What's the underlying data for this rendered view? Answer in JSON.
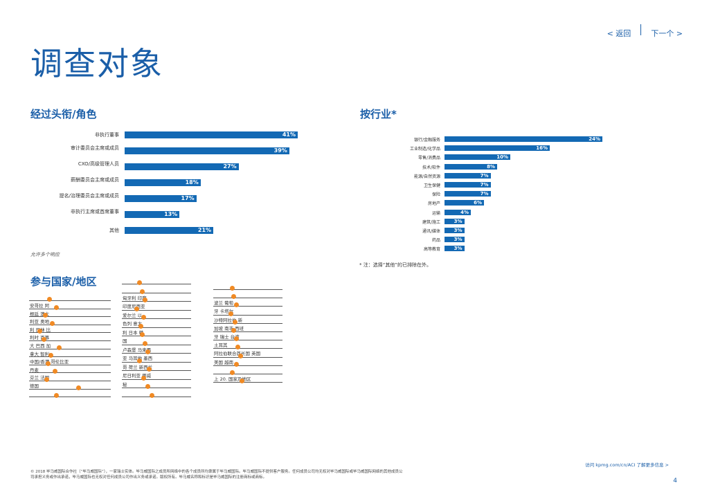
{
  "nav": {
    "back": "< 返回",
    "next": "下一个 >"
  },
  "page_title": "调查对象",
  "roles": {
    "title": "经过头衔/角色",
    "note": "允许多个响应",
    "items": [
      {
        "label": "非执行董事",
        "value": "41%",
        "pct": 41
      },
      {
        "label": "审计委员会主席或成员",
        "value": "39%",
        "pct": 39
      },
      {
        "label": "CXO/高级管理人员",
        "value": "27%",
        "pct": 27
      },
      {
        "label": "薪酬委员会主席或成员",
        "value": "18%",
        "pct": 18
      },
      {
        "label": "提名/治理委员会主席或成员",
        "value": "17%",
        "pct": 17
      },
      {
        "label": "非执行主席或首席董事",
        "value": "13%",
        "pct": 13
      },
      {
        "label": "其他",
        "value": "21%",
        "pct": 21
      }
    ]
  },
  "industry": {
    "title": "按行业*",
    "footnote": "* 注：选择“其他”的已排除在外。",
    "items": [
      {
        "label": "银行/金融服务",
        "value": "24%",
        "pct": 24
      },
      {
        "label": "工业制造/化学品",
        "value": "16%",
        "pct": 16
      },
      {
        "label": "零售/消费品",
        "value": "10%",
        "pct": 10
      },
      {
        "label": "技术/软件",
        "value": "8%",
        "pct": 8
      },
      {
        "label": "能源/自然资源",
        "value": "7%",
        "pct": 7
      },
      {
        "label": "卫生保健",
        "value": "7%",
        "pct": 7
      },
      {
        "label": "保险",
        "value": "7%",
        "pct": 7
      },
      {
        "label": "房地产",
        "value": "6%",
        "pct": 6
      },
      {
        "label": "运输",
        "value": "4%",
        "pct": 4
      },
      {
        "label": "建筑/施工",
        "value": "3%",
        "pct": 3
      },
      {
        "label": "通讯/媒体",
        "value": "3%",
        "pct": 3
      },
      {
        "label": "药品",
        "value": "3%",
        "pct": 3
      },
      {
        "label": "高等教育",
        "value": "3%",
        "pct": 3
      }
    ]
  },
  "countries": {
    "title": "参与国家/地区",
    "col1": [
      "安哥拉 阿",
      "根廷 澳大",
      "利亚 奥地",
      "利 巴林 比",
      "利时 百慕",
      "大 巴西 加",
      "拿大 智利",
      "中国/香港 哥伦比亚",
      "丹麦",
      "芬兰 法国",
      "德国",
      "",
      ""
    ],
    "col2": [
      "",
      "匈牙利 印度",
      "印度尼西亚",
      "爱尔兰 以",
      "色列 意大",
      "利 日本 韩",
      "国",
      "卢森堡 马来西",
      "亚 马耳他 墨西",
      "哥 荷兰 新西兰",
      "尼日利亚 挪威",
      "秘",
      "",
      ""
    ],
    "col3": [
      "",
      "波兰 葡萄",
      "牙 卡塔尔",
      "沙特阿拉伯 新",
      "加坡 南非 西班",
      "牙 瑞士 台湾",
      "土耳其",
      "阿拉伯联合酋长国 英国",
      "美国 越南",
      "",
      "上 20. 国家及地区",
      ""
    ]
  },
  "footer": {
    "text": "© 2018 毕马威国际合作社（“毕马威国际”），一家瑞士实体。毕马威国际之成员所网络中的各个成员所均隶属于毕马威国际。毕马威国际不提供客户服务。任何成员公司均无权对毕马威国际或毕马威国际网络的其他成员公司承担义务或作出承诺，毕马威国际也无权对任何成员公司作出义务或承诺。版权所有。毕马威名称和标识是毕马威国际的注册商标或商标。",
    "link": "访问 kpmg.com/cn/ACI 了解更多信息 >",
    "page": "4"
  },
  "colors": {
    "accent": "#1a5ea8",
    "bar": "#1369b4",
    "dot": "#f08a24"
  }
}
